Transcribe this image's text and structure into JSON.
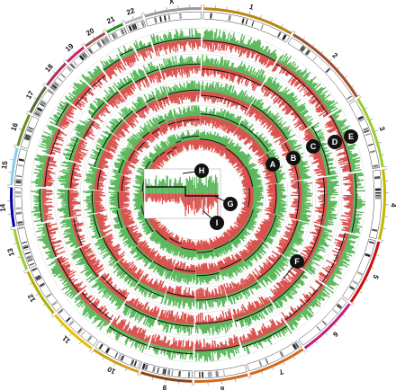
{
  "chromosomes": [
    "1",
    "2",
    "3",
    "4",
    "5",
    "6",
    "7",
    "8",
    "9",
    "10",
    "11",
    "12",
    "13",
    "14",
    "15",
    "16",
    "17",
    "18",
    "19",
    "20",
    "21",
    "22",
    "X"
  ],
  "chromosome_colors": [
    "#b8860b",
    "#a0522d",
    "#9acd32",
    "#c8b400",
    "#cc1010",
    "#c02080",
    "#d2691e",
    "#d2691e",
    "#8b4513",
    "#d2a020",
    "#e6c000",
    "#b0b000",
    "#9acd32",
    "#0000aa",
    "#87ceeb",
    "#6b8e23",
    "#556b2f",
    "#b03060",
    "#d02070",
    "#a05050",
    "#228b22",
    "#bbbbbb",
    "#999999"
  ],
  "track_markers": [
    {
      "label": "A"
    },
    {
      "label": "B"
    },
    {
      "label": "C"
    },
    {
      "label": "D"
    },
    {
      "label": "E"
    }
  ],
  "inset_markers": [
    {
      "label": "F"
    },
    {
      "label": "G"
    },
    {
      "label": "H"
    },
    {
      "label": "I"
    }
  ],
  "colors": {
    "gain": "#5cb85c",
    "loss": "#d9534f",
    "segment_line": "#111111",
    "marker_fill": "#111111",
    "grid": "#cccccc"
  }
}
